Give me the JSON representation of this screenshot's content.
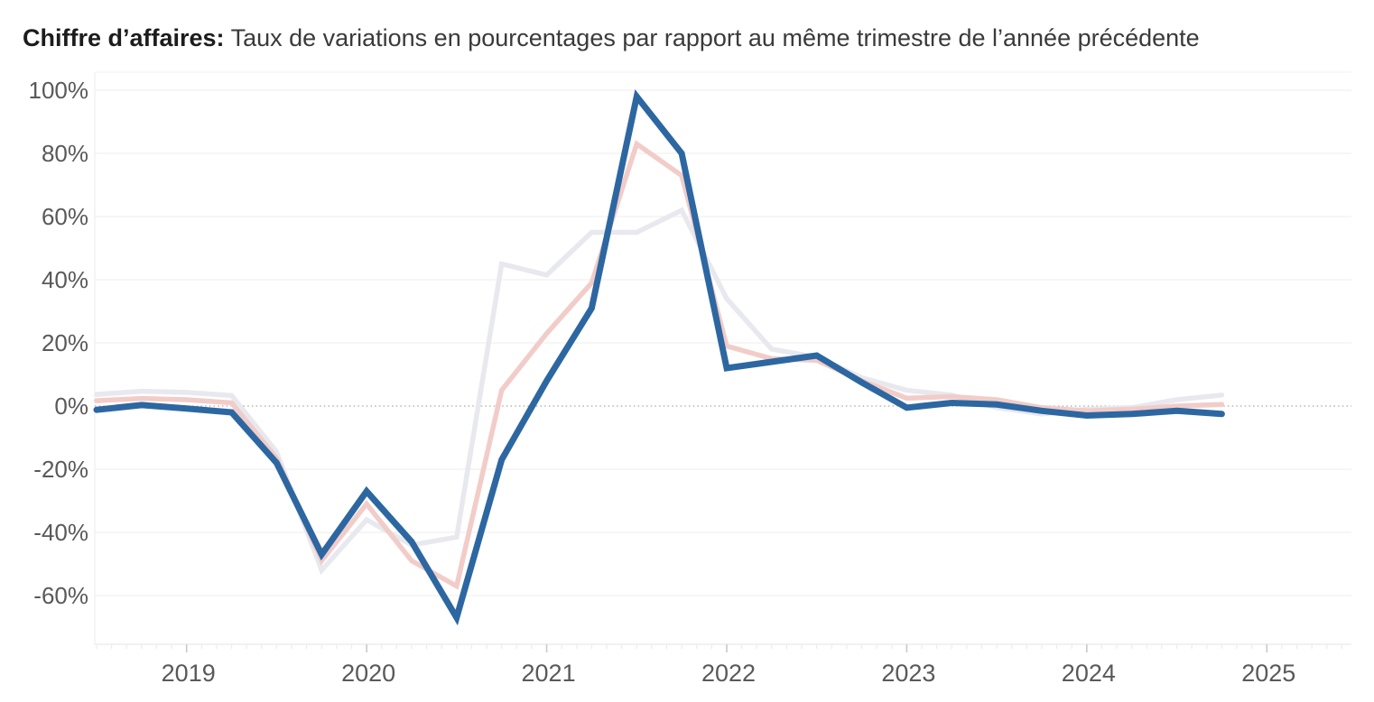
{
  "title": {
    "prefix": "Chiffre d’affaires:",
    "rest": "Taux de variations en pourcentages par rapport au même trimestre de l’année précédente"
  },
  "colors": {
    "series_blue": "#2d67a1",
    "series_pink": "#f2ccc8",
    "series_gray": "#e8e8ef",
    "gridline": "#ededed",
    "zero_line": "#a8a8a8",
    "axis_spine": "#e3e3e3",
    "tick_year": "#c9c9c9",
    "tick_minor": "#ececec",
    "tick_label": "#595959",
    "title_bold": "#1c1c1c",
    "title_regular": "#3a3a3a"
  },
  "chart_data": {
    "type": "line",
    "title": "Chiffre d’affaires: Taux de variations en pourcentages par rapport au même trimestre de l’année précédente",
    "x_axis": {
      "tick_labels": [
        "2019",
        "2020",
        "2021",
        "2022",
        "2023",
        "2024",
        "2025"
      ],
      "tick_values": [
        2019,
        2020,
        2021,
        2022,
        2023,
        2024,
        2025
      ],
      "range": [
        2018.49,
        2025.47
      ],
      "minor_ticks": "monthly"
    },
    "y_axis": {
      "tick_labels": [
        "100%",
        "80%",
        "60%",
        "40%",
        "20%",
        "0%",
        "-20%",
        "-40%",
        "-60%"
      ],
      "tick_values": [
        100,
        80,
        60,
        40,
        20,
        0,
        -20,
        -40,
        -60
      ],
      "range": [
        -75.4,
        105.7
      ],
      "unit": "%",
      "zero_line_style": "dotted",
      "grid": true
    },
    "x_start": 2018.5,
    "x_step": 0.25,
    "legend": "none",
    "series": [
      {
        "name": "gris",
        "color": "#e8e8ef",
        "line_width": 5.5,
        "values": [
          3.7,
          4.7,
          4.3,
          3.3,
          -14.5,
          -52,
          -36,
          -44,
          -41.5,
          45,
          41.5,
          55,
          55,
          62,
          34,
          18,
          15.5,
          9,
          5,
          3.5,
          -0.5,
          -2.5,
          -1,
          -0.5,
          2,
          3.5
        ]
      },
      {
        "name": "rose",
        "color": "#f2ccc8",
        "line_width": 5.5,
        "values": [
          1.7,
          2.4,
          2,
          1,
          -16.5,
          -49,
          -31,
          -49,
          -57,
          5,
          23,
          39,
          83,
          73,
          19,
          15,
          14.5,
          8,
          2.5,
          3,
          2,
          -0.5,
          -1.5,
          -1,
          0,
          0.5
        ]
      },
      {
        "name": "bleu",
        "color": "#2d67a1",
        "line_width": 7,
        "values": [
          -1.2,
          0.3,
          -0.8,
          -2,
          -18,
          -47,
          -27,
          -43,
          -67,
          -17,
          8,
          31,
          98,
          80,
          12,
          14,
          16,
          7.5,
          -0.5,
          1,
          0.5,
          -1.5,
          -3,
          -2.5,
          -1.5,
          -2.5
        ]
      }
    ]
  }
}
